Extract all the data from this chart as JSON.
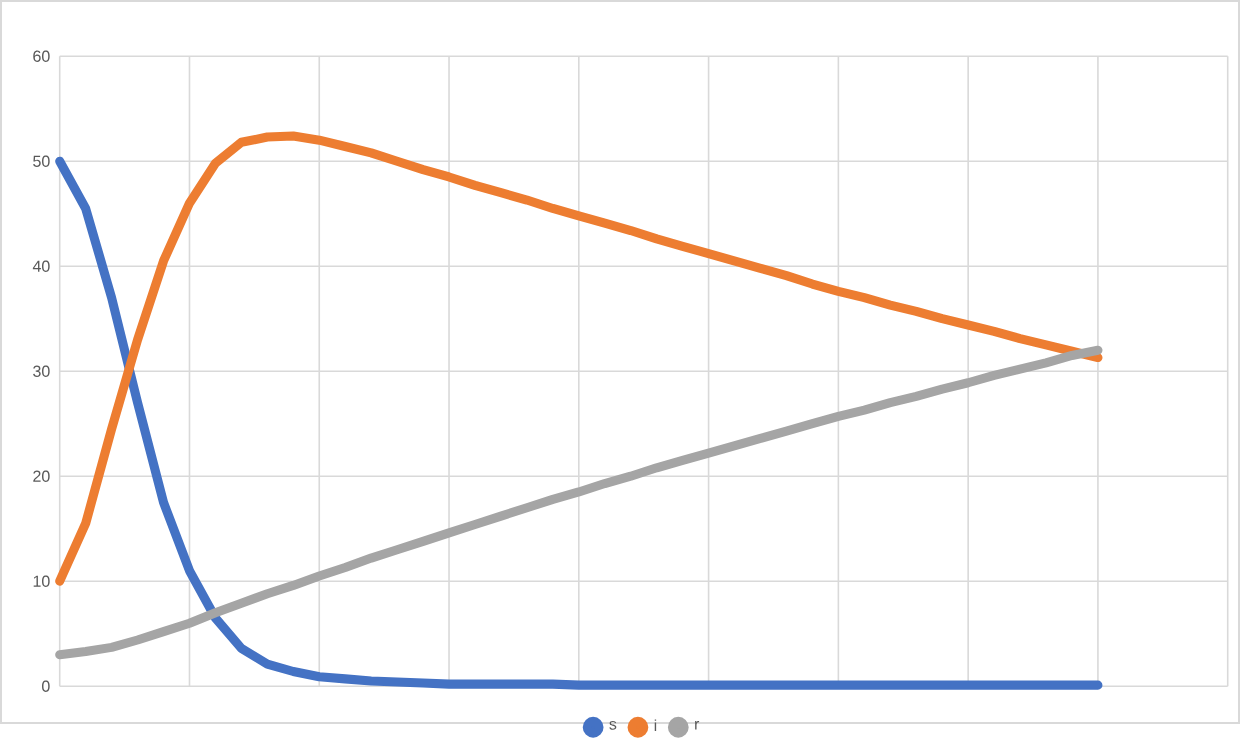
{
  "chart_data": {
    "type": "line",
    "categories": [
      null,
      null,
      null,
      null,
      null,
      null,
      null,
      null,
      null,
      null,
      null,
      null,
      null,
      null,
      null,
      null,
      null,
      null,
      null,
      null,
      null,
      null,
      null,
      null,
      null,
      null,
      null,
      null,
      null,
      null,
      null,
      null,
      null,
      null,
      null,
      null,
      null,
      null,
      null,
      null,
      null
    ],
    "series": [
      {
        "name": "s",
        "color": "#4472c4",
        "values": [
          50,
          45.5,
          37,
          27,
          17.5,
          11,
          6.5,
          3.6,
          2.1,
          1.4,
          0.9,
          0.7,
          0.5,
          0.4,
          0.3,
          0.2,
          0.2,
          0.2,
          0.2,
          0.2,
          0.1,
          0.1,
          0.1,
          0.1,
          0.1,
          0.1,
          0.1,
          0.1,
          0.1,
          0.1,
          0.1,
          0.1,
          0.1,
          0.1,
          0.1,
          0.1,
          0.1,
          0.1,
          0.1,
          0.1,
          0.1
        ]
      },
      {
        "name": "i",
        "color": "#ed7d31",
        "values": [
          10,
          15.5,
          24.5,
          33,
          40.5,
          46,
          49.8,
          51.8,
          52.3,
          52.4,
          52,
          51.4,
          50.8,
          50,
          49.2,
          48.5,
          47.7,
          47,
          46.3,
          45.5,
          44.8,
          44.1,
          43.4,
          42.6,
          41.9,
          41.2,
          40.5,
          39.8,
          39.1,
          38.3,
          37.6,
          37,
          36.3,
          35.7,
          35,
          34.4,
          33.8,
          33.1,
          32.5,
          31.9,
          31.3
        ]
      },
      {
        "name": "r",
        "color": "#a5a5a5",
        "values": [
          3,
          3.3,
          3.7,
          4.4,
          5.2,
          6,
          7,
          7.9,
          8.8,
          9.6,
          10.5,
          11.3,
          12.2,
          13,
          13.8,
          14.6,
          15.4,
          16.2,
          17,
          17.8,
          18.5,
          19.3,
          20,
          20.8,
          21.5,
          22.2,
          22.9,
          23.6,
          24.3,
          25,
          25.7,
          26.3,
          27,
          27.6,
          28.3,
          28.9,
          29.6,
          30.2,
          30.8,
          31.5,
          32
        ]
      }
    ],
    "ylim": [
      0,
      60
    ],
    "yticks": [
      0,
      10,
      20,
      30,
      40,
      50,
      60
    ],
    "grid": true,
    "legend": "bottom",
    "line_style": "solid"
  }
}
